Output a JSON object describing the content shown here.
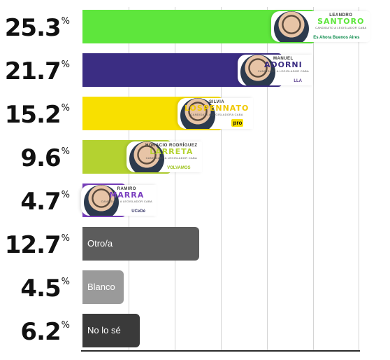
{
  "chart_data": {
    "type": "bar",
    "orientation": "horizontal",
    "grid": true,
    "xlim": [
      0,
      30
    ],
    "percent_symbol": "%",
    "bars": [
      {
        "value": 25.3,
        "value_label": "25.3",
        "color": "#5ee63c",
        "candidate": {
          "first_name": "LEANDRO",
          "last_name": "SANTORO",
          "subtitle": "CANDIDATO A LEGISLADOR CABA",
          "name_color": "#5ee63c",
          "logo_text": "Es Ahora Buenos Aires",
          "logo_color": "#0a8a4a"
        }
      },
      {
        "value": 21.7,
        "value_label": "21.7",
        "color": "#3b2d83",
        "candidate": {
          "first_name": "MANUEL",
          "last_name": "ADORNI",
          "subtitle": "CANDIDATO A LEGISLADOR CABA",
          "name_color": "#3b2d83",
          "logo_text": "LLA",
          "logo_color": "#5a3e8c"
        }
      },
      {
        "value": 15.2,
        "value_label": "15.2",
        "color": "#f8e000",
        "candidate": {
          "first_name": "SILVIA",
          "last_name": "LOSPENNATO",
          "subtitle": "CANDIDATA A LEGISLADORA CABA",
          "name_color": "#f0c800",
          "logo_text": "pro",
          "logo_color": "#111111"
        }
      },
      {
        "value": 9.6,
        "value_label": "9.6",
        "color": "#b4d230",
        "candidate": {
          "first_name": "HORACIO RODRÍGUEZ",
          "last_name": "LARRETA",
          "subtitle": "CANDIDATO A LEGISLADOR CABA",
          "name_color": "#b4d230",
          "logo_text": "VOLVAMOS",
          "logo_color": "#9cc21a"
        }
      },
      {
        "value": 4.7,
        "value_label": "4.7",
        "color": "#7a3fbf",
        "candidate": {
          "first_name": "RAMIRO",
          "last_name": "MARRA",
          "subtitle": "CANDIDATO A LEGISLADOR CABA",
          "name_color": "#7a3fbf",
          "logo_text": "UCeDé",
          "logo_color": "#3a3a6a"
        }
      },
      {
        "value": 12.7,
        "value_label": "12.7",
        "color": "#5c5c5c",
        "label": "Otro/a"
      },
      {
        "value": 4.5,
        "value_label": "4.5",
        "color": "#9a9a9a",
        "label": "Blanco"
      },
      {
        "value": 6.2,
        "value_label": "6.2",
        "color": "#3a3a3a",
        "label": "No lo sé"
      }
    ]
  }
}
